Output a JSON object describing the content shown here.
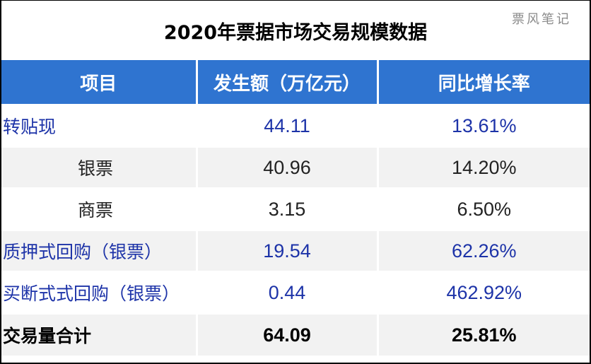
{
  "title": "2020年票据市场交易规模数据",
  "watermark": "票风笔记",
  "columns": [
    "项目",
    "发生额（万亿元）",
    "同比增长率"
  ],
  "rows": [
    {
      "item": "转贴现",
      "amount": "44.11",
      "growth": "13.61%"
    },
    {
      "item": "银票",
      "amount": "40.96",
      "growth": "14.20%"
    },
    {
      "item": "商票",
      "amount": "3.15",
      "growth": "6.50%"
    },
    {
      "item": "质押式回购（银票）",
      "amount": "19.54",
      "growth": "62.26%"
    },
    {
      "item": "买断式式回购（银票）",
      "amount": "0.44",
      "growth": "462.92%"
    },
    {
      "item": "交易量合计",
      "amount": "64.09",
      "growth": "25.81%"
    }
  ],
  "colors": {
    "header_bg": "#2f74d0",
    "blue_text": "#1d33a8",
    "row_alt_bg": "#f2f2f2",
    "border": "#000000"
  }
}
